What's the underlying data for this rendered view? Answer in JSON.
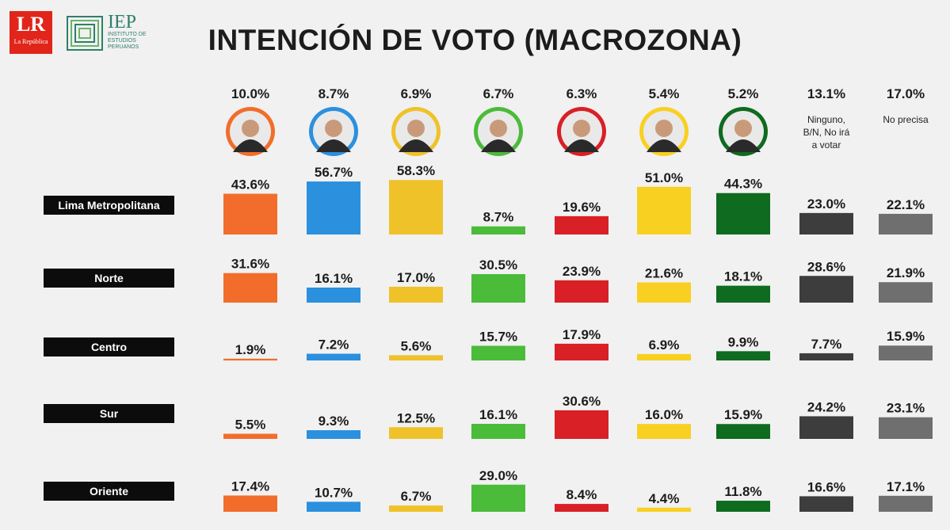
{
  "logos": {
    "lr_mark": "LR",
    "lr_name": "La República",
    "iep_mark": "IEP",
    "iep_name": "INSTITUTO DE ESTUDIOS PERUANOS"
  },
  "chart_data": {
    "type": "bar",
    "title": "INTENCIÓN DE VOTO (MACROZONA)",
    "unit": "%",
    "candidates": [
      {
        "overall": "10.0%",
        "color": "#f26d2b",
        "label": ""
      },
      {
        "overall": "8.7%",
        "color": "#2b90de",
        "label": ""
      },
      {
        "overall": "6.9%",
        "color": "#f0c22a",
        "label": ""
      },
      {
        "overall": "6.7%",
        "color": "#4bbb3a",
        "label": ""
      },
      {
        "overall": "6.3%",
        "color": "#d92026",
        "label": ""
      },
      {
        "overall": "5.4%",
        "color": "#f8d022",
        "label": ""
      },
      {
        "overall": "5.2%",
        "color": "#0e6b1f",
        "label": ""
      },
      {
        "overall": "13.1%",
        "color": "#3d3d3d",
        "label": "Ninguno, B/N, No irá a votar"
      },
      {
        "overall": "17.0%",
        "color": "#6f6f6f",
        "label": "No precisa"
      }
    ],
    "series": [
      {
        "name": "Lima Metropolitana",
        "values": [
          43.6,
          56.7,
          58.3,
          8.7,
          19.6,
          51.0,
          44.3,
          23.0,
          22.1
        ]
      },
      {
        "name": "Norte",
        "values": [
          31.6,
          16.1,
          17.0,
          30.5,
          23.9,
          21.6,
          18.1,
          28.6,
          21.9
        ]
      },
      {
        "name": "Centro",
        "values": [
          1.9,
          7.2,
          5.6,
          15.7,
          17.9,
          6.9,
          9.9,
          7.7,
          15.9
        ]
      },
      {
        "name": "Sur",
        "values": [
          5.5,
          9.3,
          12.5,
          16.1,
          30.6,
          16.0,
          15.9,
          24.2,
          23.1
        ]
      },
      {
        "name": "Oriente",
        "values": [
          17.4,
          10.7,
          6.7,
          29.0,
          8.4,
          4.4,
          11.8,
          16.6,
          17.1
        ]
      }
    ]
  }
}
